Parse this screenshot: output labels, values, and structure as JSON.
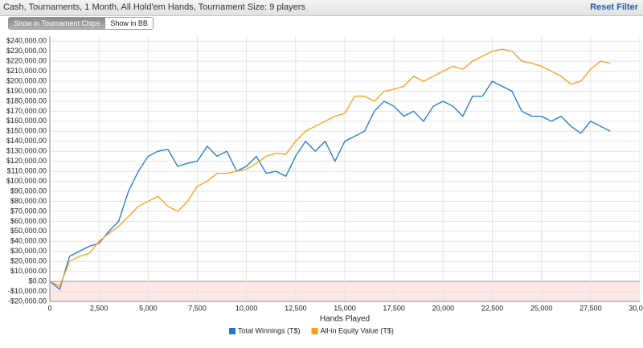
{
  "header": {
    "filter_text": "Cash, Tournaments, 1 Month, All Hold'em Hands, Tournament Size: 9 players",
    "reset_link": "Reset Filter"
  },
  "toggle": {
    "options": [
      "Show in Tournament Chips",
      "Show in BB"
    ],
    "selected": 0
  },
  "chart_data": {
    "type": "line",
    "xlabel": "Hands Played",
    "x": [
      0,
      500,
      1000,
      1500,
      2000,
      2500,
      3000,
      3500,
      4000,
      4500,
      5000,
      5500,
      6000,
      6500,
      7000,
      7500,
      8000,
      8500,
      9000,
      9500,
      10000,
      10500,
      11000,
      11500,
      12000,
      12500,
      13000,
      13500,
      14000,
      14500,
      15000,
      15500,
      16000,
      16500,
      17000,
      17500,
      18000,
      18500,
      19000,
      19500,
      20000,
      20500,
      21000,
      21500,
      22000,
      22500,
      23000,
      23500,
      24000,
      24500,
      25000,
      25500,
      26000,
      26500,
      27000,
      27500,
      28000,
      28500
    ],
    "series": [
      {
        "name": "Total Winnings (T$)",
        "color": "#1f78c8",
        "values": [
          0,
          -8000,
          25000,
          30000,
          35000,
          38000,
          50000,
          60000,
          90000,
          110000,
          125000,
          130000,
          132000,
          115000,
          118000,
          120000,
          135000,
          125000,
          130000,
          110000,
          115000,
          125000,
          108000,
          110000,
          105000,
          125000,
          140000,
          130000,
          140000,
          120000,
          140000,
          145000,
          150000,
          170000,
          180000,
          175000,
          165000,
          170000,
          160000,
          175000,
          180000,
          175000,
          165000,
          185000,
          185000,
          200000,
          195000,
          190000,
          170000,
          165000,
          165000,
          160000,
          165000,
          155000,
          148000,
          160000,
          155000,
          150000
        ]
      },
      {
        "name": "All-in Equity Value (T$)",
        "color": "#f5a01a",
        "values": [
          0,
          -5000,
          20000,
          25000,
          28000,
          40000,
          48000,
          55000,
          65000,
          75000,
          80000,
          85000,
          75000,
          70000,
          80000,
          95000,
          100000,
          108000,
          108000,
          110000,
          112000,
          118000,
          125000,
          128000,
          127000,
          140000,
          150000,
          155000,
          160000,
          165000,
          168000,
          185000,
          185000,
          180000,
          190000,
          192000,
          195000,
          205000,
          200000,
          205000,
          210000,
          215000,
          212000,
          220000,
          225000,
          230000,
          232000,
          230000,
          220000,
          218000,
          215000,
          210000,
          205000,
          197000,
          200000,
          212000,
          220000,
          218000
        ]
      }
    ],
    "xlim": [
      0,
      30000
    ],
    "xticks": [
      0,
      {
        "value": 2500,
        "label": "2,500"
      },
      {
        "value": 5000,
        "label": "5,000"
      },
      {
        "value": 7500,
        "label": "7,500"
      },
      {
        "value": 10000,
        "label": "10,000"
      },
      {
        "value": 12500,
        "label": "12,500"
      },
      {
        "value": 15000,
        "label": "15,000"
      },
      {
        "value": 17500,
        "label": "17,500"
      },
      {
        "value": 20000,
        "label": "20,000"
      },
      {
        "value": 22500,
        "label": "22,500"
      },
      {
        "value": 25000,
        "label": "25,000"
      },
      {
        "value": 27500,
        "label": "27,500"
      },
      {
        "value": 30000,
        "label": "30,000"
      }
    ],
    "ylim": [
      -20000,
      245000
    ],
    "yticks": [
      {
        "value": -20000,
        "label": "-$20,000.00"
      },
      {
        "value": -10000,
        "label": "-$10,000.00"
      },
      {
        "value": 0,
        "label": "$0.00"
      },
      {
        "value": 10000,
        "label": "$10,000.00"
      },
      {
        "value": 20000,
        "label": "$20,000.00"
      },
      {
        "value": 30000,
        "label": "$30,000.00"
      },
      {
        "value": 40000,
        "label": "$40,000.00"
      },
      {
        "value": 50000,
        "label": "$50,000.00"
      },
      {
        "value": 60000,
        "label": "$60,000.00"
      },
      {
        "value": 70000,
        "label": "$70,000.00"
      },
      {
        "value": 80000,
        "label": "$80,000.00"
      },
      {
        "value": 90000,
        "label": "$90,000.00"
      },
      {
        "value": 100000,
        "label": "$100,000.00"
      },
      {
        "value": 110000,
        "label": "$110,000.00"
      },
      {
        "value": 120000,
        "label": "$120,000.00"
      },
      {
        "value": 130000,
        "label": "$130,000.00"
      },
      {
        "value": 140000,
        "label": "$140,000.00"
      },
      {
        "value": 150000,
        "label": "$150,000.00"
      },
      {
        "value": 160000,
        "label": "$160,000.00"
      },
      {
        "value": 170000,
        "label": "$170,000.00"
      },
      {
        "value": 180000,
        "label": "$180,000.00"
      },
      {
        "value": 190000,
        "label": "$190,000.00"
      },
      {
        "value": 200000,
        "label": "$200,000.00"
      },
      {
        "value": 210000,
        "label": "$210,000.00"
      },
      {
        "value": 220000,
        "label": "$220,000.00"
      },
      {
        "value": 230000,
        "label": "$230,000.00"
      },
      {
        "value": 240000,
        "label": "$240,000.00"
      }
    ],
    "grid": true,
    "legend": "bottom"
  }
}
